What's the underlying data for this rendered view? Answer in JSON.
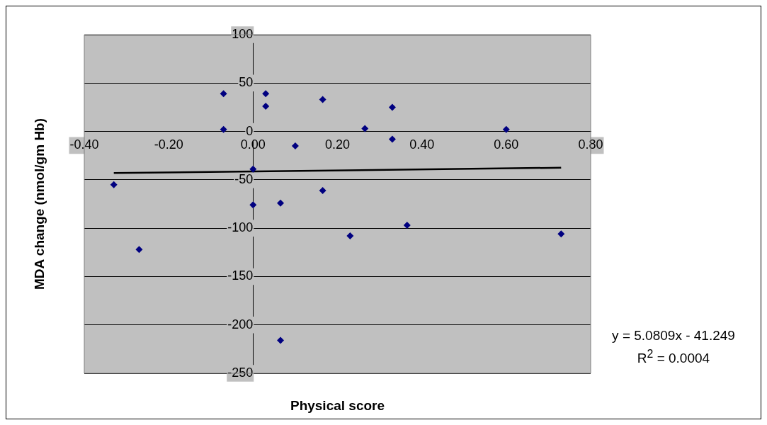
{
  "chart_data": {
    "type": "scatter",
    "xlabel": "Physical score",
    "ylabel": "MDA change (nmol/gm Hb)",
    "annotations": [
      "y = 5.0809x - 41.249",
      "R$^{2}$ = 0.0004"
    ],
    "xlim": [
      -0.4,
      0.8
    ],
    "xticks": [
      {
        "value": -0.4,
        "label": "-0.40"
      },
      {
        "value": -0.2,
        "label": "-0.20"
      },
      {
        "value": 0,
        "label": "0.00"
      },
      {
        "value": 0.2,
        "label": "0.20"
      },
      {
        "value": 0.4,
        "label": "0.40"
      },
      {
        "value": 0.6,
        "label": "0.60"
      },
      {
        "value": 0.8,
        "label": "0.80"
      }
    ],
    "ylim": [
      -250,
      100
    ],
    "yticks": [
      -250,
      -200,
      -150,
      -100,
      -50,
      0,
      50,
      100
    ],
    "grid": "y",
    "legend": false,
    "series": [
      {
        "color": "#000080",
        "marker": "diamond",
        "x": [
          -0.33,
          -0.27,
          -0.07,
          -0.07,
          0.03,
          0.03,
          0,
          0,
          0.065,
          0.065,
          0.1,
          0.165,
          0.165,
          0.265,
          0.23,
          0.33,
          0.33,
          0.365,
          0.6,
          0.73
        ],
        "values": [
          -55,
          -122,
          39,
          2,
          39,
          26,
          -39,
          -76,
          -74,
          -216,
          -15,
          33,
          -61,
          3,
          -108,
          25,
          -8,
          -97,
          2,
          -106
        ]
      },
      {
        "type": "line",
        "color": "#000000",
        "marker": "none",
        "line_style": "solid",
        "x": [
          -0.33,
          0.73
        ],
        "values": [
          -43,
          -37.5
        ]
      }
    ]
  }
}
